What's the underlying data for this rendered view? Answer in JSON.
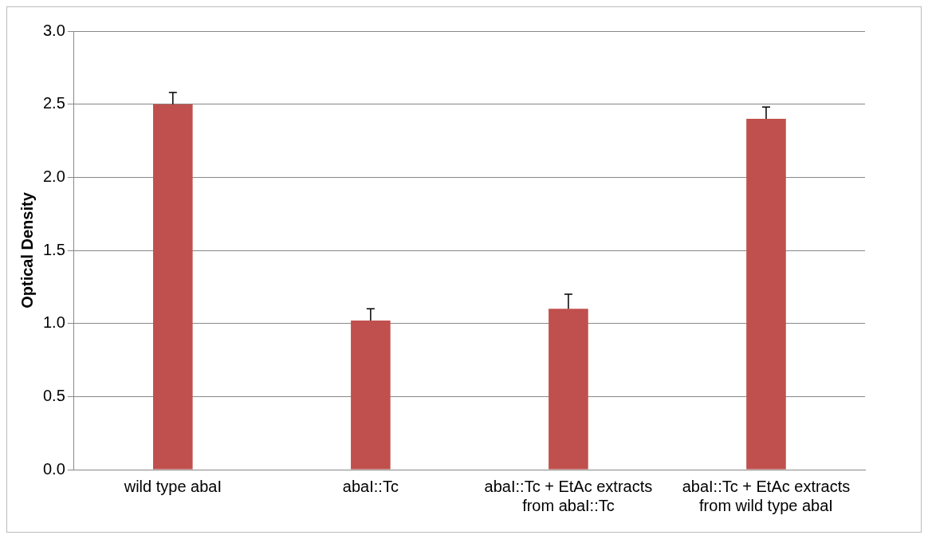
{
  "chart_data": {
    "type": "bar",
    "ylabel": "Optical Density",
    "categories": [
      "wild type abaI",
      "abaI::Tc",
      "abaI::Tc + EtAc extracts from abaI::Tc",
      "abaI::Tc + EtAc extracts from wild type abaI"
    ],
    "values": [
      2.5,
      1.02,
      1.1,
      2.4
    ],
    "color": "#c0504d",
    "errors": [
      [
        2.5,
        2.58
      ],
      [
        1.02,
        1.1
      ],
      [
        1.1,
        1.2
      ],
      [
        2.4,
        2.48
      ]
    ],
    "ylim": [
      0,
      3
    ],
    "yticks": [
      {
        "value": 0,
        "label": "0.0"
      },
      {
        "value": 0.5,
        "label": "0.5"
      },
      {
        "value": 1,
        "label": "1.0"
      },
      {
        "value": 1.5,
        "label": "1.5"
      },
      {
        "value": 2,
        "label": "2.0"
      },
      {
        "value": 2.5,
        "label": "2.5"
      },
      {
        "value": 3,
        "label": "3.0"
      }
    ],
    "grid": "y",
    "legend": false
  }
}
